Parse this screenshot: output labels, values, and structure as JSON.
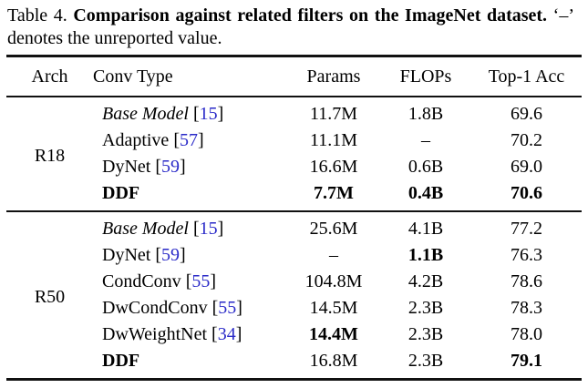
{
  "caption": {
    "prefix": "Table 4.",
    "bold": "Comparison against related filters on the ImageNet dataset.",
    "suffix": "‘–’ denotes the unreported value."
  },
  "colors": {
    "text": "#000000",
    "background": "#ffffff",
    "citation": "#2a2ac8",
    "rule": "#111111"
  },
  "table": {
    "columns": [
      "Arch",
      "Conv Type",
      "Params",
      "FLOPs",
      "Top-1 Acc"
    ],
    "groups": [
      {
        "arch": "R18",
        "rows": [
          {
            "conv": {
              "label": "Base Model",
              "cite": "15",
              "italic": true,
              "bold": false
            },
            "params": {
              "text": "11.7M",
              "bold": false
            },
            "flops": {
              "text": "1.8B",
              "bold": false
            },
            "acc": {
              "text": "69.6",
              "bold": false
            }
          },
          {
            "conv": {
              "label": "Adaptive",
              "cite": "57",
              "italic": false,
              "bold": false
            },
            "params": {
              "text": "11.1M",
              "bold": false
            },
            "flops": {
              "text": "–",
              "bold": false
            },
            "acc": {
              "text": "70.2",
              "bold": false
            }
          },
          {
            "conv": {
              "label": "DyNet",
              "cite": "59",
              "italic": false,
              "bold": false
            },
            "params": {
              "text": "16.6M",
              "bold": false
            },
            "flops": {
              "text": "0.6B",
              "bold": false
            },
            "acc": {
              "text": "69.0",
              "bold": false
            }
          },
          {
            "conv": {
              "label": "DDF",
              "cite": null,
              "italic": false,
              "bold": true
            },
            "params": {
              "text": "7.7M",
              "bold": true
            },
            "flops": {
              "text": "0.4B",
              "bold": true
            },
            "acc": {
              "text": "70.6",
              "bold": true
            }
          }
        ]
      },
      {
        "arch": "R50",
        "rows": [
          {
            "conv": {
              "label": "Base Model",
              "cite": "15",
              "italic": true,
              "bold": false
            },
            "params": {
              "text": "25.6M",
              "bold": false
            },
            "flops": {
              "text": "4.1B",
              "bold": false
            },
            "acc": {
              "text": "77.2",
              "bold": false
            }
          },
          {
            "conv": {
              "label": "DyNet",
              "cite": "59",
              "italic": false,
              "bold": false
            },
            "params": {
              "text": "–",
              "bold": false
            },
            "flops": {
              "text": "1.1B",
              "bold": true
            },
            "acc": {
              "text": "76.3",
              "bold": false
            }
          },
          {
            "conv": {
              "label": "CondConv",
              "cite": "55",
              "italic": false,
              "bold": false
            },
            "params": {
              "text": "104.8M",
              "bold": false
            },
            "flops": {
              "text": "4.2B",
              "bold": false
            },
            "acc": {
              "text": "78.6",
              "bold": false
            }
          },
          {
            "conv": {
              "label": "DwCondConv",
              "cite": "55",
              "italic": false,
              "bold": false
            },
            "params": {
              "text": "14.5M",
              "bold": false
            },
            "flops": {
              "text": "2.3B",
              "bold": false
            },
            "acc": {
              "text": "78.3",
              "bold": false
            }
          },
          {
            "conv": {
              "label": "DwWeightNet",
              "cite": "34",
              "italic": false,
              "bold": false
            },
            "params": {
              "text": "14.4M",
              "bold": true
            },
            "flops": {
              "text": "2.3B",
              "bold": false
            },
            "acc": {
              "text": "78.0",
              "bold": false
            }
          },
          {
            "conv": {
              "label": "DDF",
              "cite": null,
              "italic": false,
              "bold": true
            },
            "params": {
              "text": "16.8M",
              "bold": false
            },
            "flops": {
              "text": "2.3B",
              "bold": false
            },
            "acc": {
              "text": "79.1",
              "bold": true
            }
          }
        ]
      }
    ]
  }
}
